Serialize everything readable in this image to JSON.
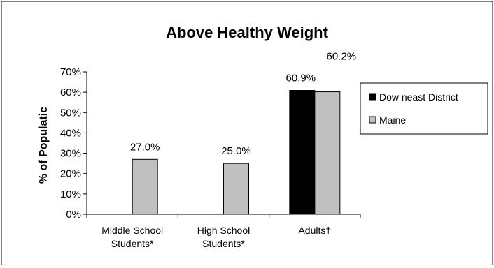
{
  "chart_data": {
    "type": "bar",
    "title": "Above Healthy Weight",
    "ylabel": "% of Populatic",
    "xlabel": "",
    "ylim": [
      0,
      70
    ],
    "yticks": [
      "0%",
      "10%",
      "20%",
      "30%",
      "40%",
      "50%",
      "60%",
      "70%"
    ],
    "categories": [
      [
        "Middle School",
        "Students*"
      ],
      [
        "High School",
        "Students*"
      ],
      [
        "Adults†"
      ]
    ],
    "series": [
      {
        "name": "Dow neast District",
        "color": "#000000",
        "values": [
          null,
          null,
          60.9
        ],
        "labels": [
          "",
          "",
          "60.9%"
        ]
      },
      {
        "name": "Maine",
        "color": "#c0c0c0",
        "values": [
          27.0,
          25.0,
          60.2
        ],
        "labels": [
          "27.0%",
          "25.0%",
          "60.2%"
        ]
      }
    ],
    "legend_position": "right",
    "grid": false
  }
}
